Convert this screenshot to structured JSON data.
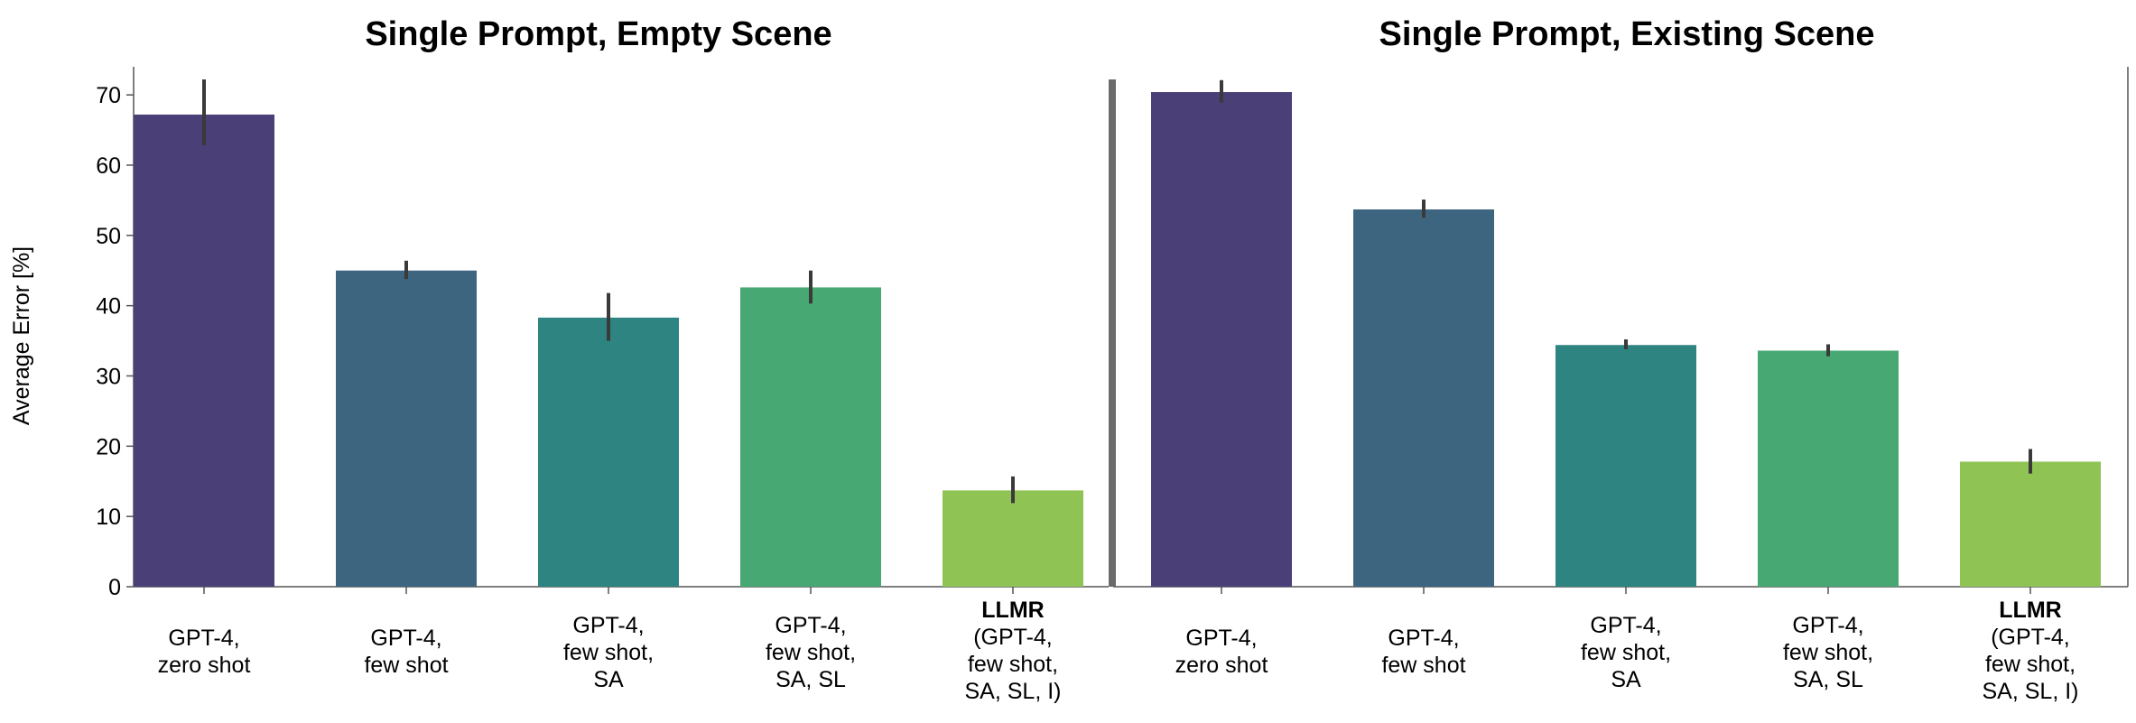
{
  "y_axis_label": "Average Error [%]",
  "colors": {
    "zero_shot": "#4b3f78",
    "few_shot": "#3e6580",
    "few_shot_sa": "#2e8480",
    "few_shot_sa_sl": "#48a873",
    "llmr": "#8fc455",
    "error_bar": "#3a3a3a",
    "separator": "#6b6b6b"
  },
  "chart_data": [
    {
      "type": "bar",
      "title": "Single Prompt, Empty Scene",
      "ylabel": "Average Error [%]",
      "xlabel": "",
      "ylim": [
        0,
        74
      ],
      "yticks": [
        0,
        10,
        20,
        30,
        40,
        50,
        60,
        70
      ],
      "grid": false,
      "categories": [
        {
          "lines": [
            "GPT-4,",
            "zero shot"
          ],
          "bold_first": false
        },
        {
          "lines": [
            "GPT-4,",
            "few shot"
          ],
          "bold_first": false
        },
        {
          "lines": [
            "GPT-4,",
            "few shot,",
            "SA"
          ],
          "bold_first": false
        },
        {
          "lines": [
            "GPT-4,",
            "few shot,",
            "SA, SL"
          ],
          "bold_first": false
        },
        {
          "lines": [
            "LLMR",
            "(GPT-4,",
            "few shot,",
            "SA, SL, I)"
          ],
          "bold_first": true
        }
      ],
      "values": [
        67.2,
        45.0,
        38.3,
        42.6,
        13.7
      ],
      "error_low": [
        62.8,
        43.8,
        35.0,
        40.3,
        11.9
      ],
      "error_high": [
        72.2,
        46.4,
        41.8,
        45.0,
        15.7
      ]
    },
    {
      "type": "bar",
      "title": "Single Prompt, Existing Scene",
      "ylabel": "",
      "xlabel": "",
      "ylim": [
        0,
        74
      ],
      "yticks": [
        0,
        10,
        20,
        30,
        40,
        50,
        60,
        70
      ],
      "grid": false,
      "categories": [
        {
          "lines": [
            "GPT-4,",
            "zero shot"
          ],
          "bold_first": false
        },
        {
          "lines": [
            "GPT-4,",
            "few shot"
          ],
          "bold_first": false
        },
        {
          "lines": [
            "GPT-4,",
            "few shot,",
            "SA"
          ],
          "bold_first": false
        },
        {
          "lines": [
            "GPT-4,",
            "few shot,",
            "SA, SL"
          ],
          "bold_first": false
        },
        {
          "lines": [
            "LLMR",
            "(GPT-4,",
            "few shot,",
            "SA, SL, I)"
          ],
          "bold_first": true
        }
      ],
      "values": [
        70.4,
        53.7,
        34.4,
        33.6,
        17.8
      ],
      "error_low": [
        68.9,
        52.5,
        33.8,
        32.8,
        16.1
      ],
      "error_high": [
        72.1,
        55.1,
        35.2,
        34.5,
        19.6
      ]
    }
  ]
}
